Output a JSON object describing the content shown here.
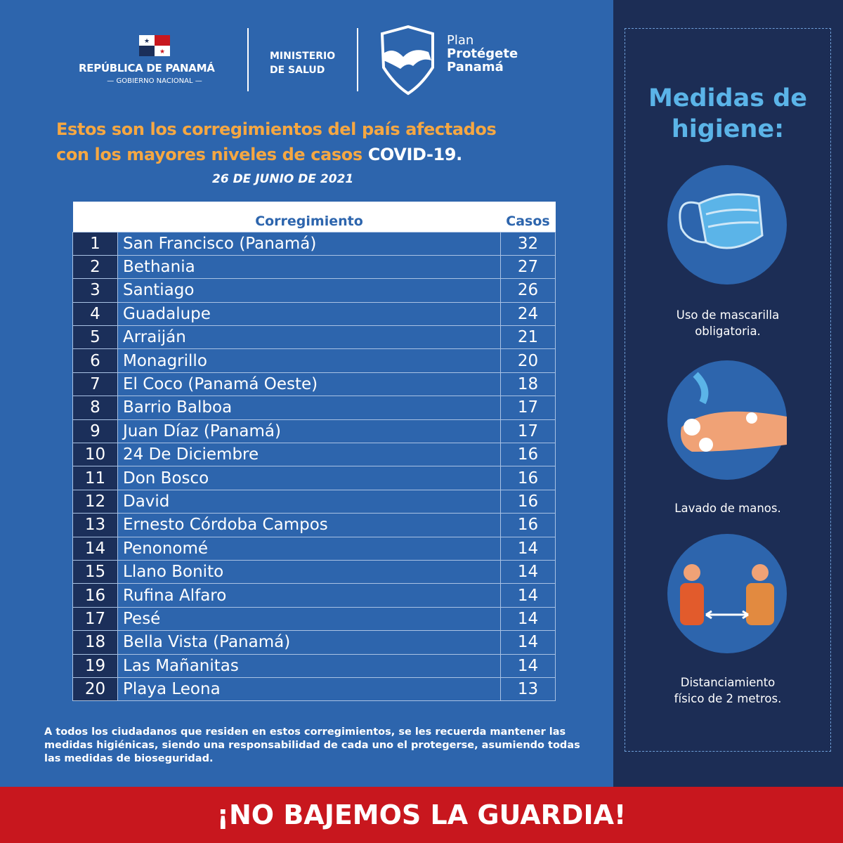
{
  "header": {
    "republica": "REPÚBLICA DE PANAMÁ",
    "gobierno": "— GOBIERNO NACIONAL —",
    "ministerio_1": "MINISTERIO",
    "ministerio_2": "DE SALUD",
    "plan_1": "Plan",
    "plan_2": "Protégete",
    "plan_3": "Panamá"
  },
  "title": {
    "line1": "Estos son los corregimientos del país afectados",
    "line2": "con los mayores niveles de casos ",
    "highlight": "COVID-19.",
    "date": "26  DE JUNIO DE 2021"
  },
  "table": {
    "headers": {
      "name": "Corregimiento",
      "cases": "Casos"
    },
    "rows": [
      {
        "n": "1",
        "name": "San Francisco (Panamá)",
        "cases": "32"
      },
      {
        "n": "2",
        "name": "Bethania",
        "cases": "27"
      },
      {
        "n": "3",
        "name": "Santiago",
        "cases": "26"
      },
      {
        "n": "4",
        "name": "Guadalupe",
        "cases": "24"
      },
      {
        "n": "5",
        "name": "Arraiján",
        "cases": "21"
      },
      {
        "n": "6",
        "name": "Monagrillo",
        "cases": "20"
      },
      {
        "n": "7",
        "name": "El Coco (Panamá Oeste)",
        "cases": "18"
      },
      {
        "n": "8",
        "name": "Barrio Balboa",
        "cases": "17"
      },
      {
        "n": "9",
        "name": "Juan Díaz (Panamá)",
        "cases": "17"
      },
      {
        "n": "10",
        "name": "24 De Diciembre",
        "cases": "16"
      },
      {
        "n": "11",
        "name": "Don Bosco",
        "cases": "16"
      },
      {
        "n": "12",
        "name": "David",
        "cases": "16"
      },
      {
        "n": "13",
        "name": "Ernesto Córdoba Campos",
        "cases": "16"
      },
      {
        "n": "14",
        "name": "Penonomé",
        "cases": "14"
      },
      {
        "n": "15",
        "name": "Llano Bonito",
        "cases": "14"
      },
      {
        "n": "16",
        "name": "Rufina Alfaro",
        "cases": "14"
      },
      {
        "n": "17",
        "name": "Pesé",
        "cases": "14"
      },
      {
        "n": "18",
        "name": "Bella Vista (Panamá)",
        "cases": "14"
      },
      {
        "n": "19",
        "name": "Las Mañanitas",
        "cases": "14"
      },
      {
        "n": "20",
        "name": "Playa Leona",
        "cases": "13"
      }
    ]
  },
  "footer_note": "A todos los ciudadanos que residen en estos corregimientos, se les recuerda mantener las medidas higiénicas, siendo una responsabilidad de cada uno el protegerse, asumiendo todas  las medidas de bioseguridad.",
  "sidebar": {
    "title_1": "Medidas de",
    "title_2": "higiene:",
    "items": [
      {
        "icon": "face-mask-icon",
        "line1": "Uso de mascarilla",
        "line2": "obligatoria."
      },
      {
        "icon": "hand-washing-icon",
        "line1": "Lavado de manos.",
        "line2": ""
      },
      {
        "icon": "social-distance-icon",
        "line1": "Distanciamiento",
        "line2": "físico de 2 metros."
      }
    ]
  },
  "banner": "¡NO BAJEMOS LA GUARDIA!",
  "colors": {
    "background": "#2d65ad",
    "accent": "#f5a742",
    "sidebar": "#1c2d55",
    "banner": "#c8171e"
  }
}
